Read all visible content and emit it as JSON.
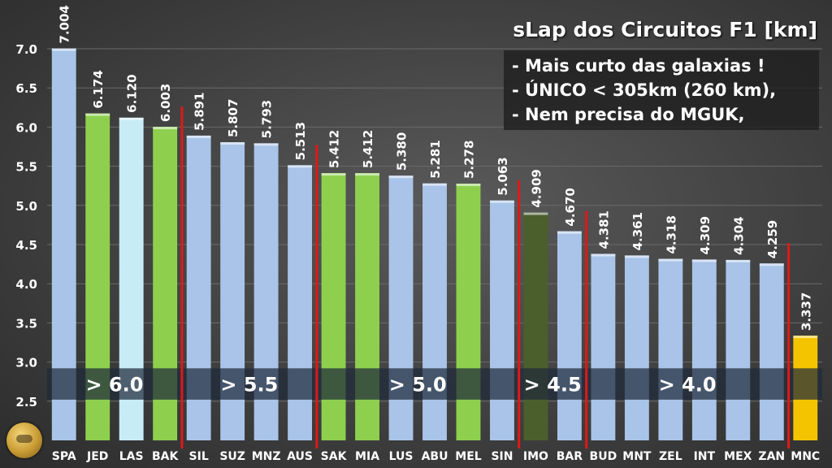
{
  "title": "sLap dos Circuitos F1 [km]",
  "notes": [
    "- Mais curto das galaxias !",
    "- ÚNICO < 305km (260 km),",
    "- Nem precisa do MGUK,"
  ],
  "band_labels": [
    "> 6.0",
    "> 5.5",
    "> 5.0",
    "> 4.5",
    "> 4.0"
  ],
  "colors": {
    "blue": "#a9c4e8",
    "green": "#8ed04e",
    "lightblue": "#c8ecf6",
    "darkgreen": "#4b5f2c",
    "yellow": "#f5c400",
    "divider": "#e01818"
  },
  "chart_data": {
    "type": "bar",
    "categories": [
      "SPA",
      "JED",
      "LAS",
      "BAK",
      "SIL",
      "SUZ",
      "MNZ",
      "AUS",
      "SAK",
      "MIA",
      "LUS",
      "ABU",
      "MEL",
      "SIN",
      "IMO",
      "BAR",
      "BUD",
      "MNT",
      "ZEL",
      "INT",
      "MEX",
      "ZAN",
      "MNC"
    ],
    "values": [
      7.004,
      6.174,
      6.12,
      6.003,
      5.891,
      5.807,
      5.793,
      5.513,
      5.412,
      5.412,
      5.38,
      5.281,
      5.278,
      5.063,
      4.909,
      4.67,
      4.381,
      4.361,
      4.318,
      4.309,
      4.304,
      4.259,
      3.337
    ],
    "value_labels": [
      "7.004",
      "6.174",
      "6.120",
      "6.003",
      "5.891",
      "5.807",
      "5.793",
      "5.513",
      "5.412",
      "5.412",
      "5.380",
      "5.281",
      "5.278",
      "5.063",
      "4.909",
      "4.670",
      "4.381",
      "4.361",
      "4.318",
      "4.309",
      "4.304",
      "4.259",
      "3.337"
    ],
    "bar_colors": [
      "blue",
      "green",
      "lightblue",
      "green",
      "blue",
      "blue",
      "blue",
      "blue",
      "green",
      "green",
      "blue",
      "blue",
      "green",
      "blue",
      "darkgreen",
      "blue",
      "blue",
      "blue",
      "blue",
      "blue",
      "blue",
      "blue",
      "yellow"
    ],
    "yticks": [
      "2.5",
      "3.0",
      "3.5",
      "4.0",
      "4.5",
      "5.0",
      "5.5",
      "6.0",
      "6.5",
      "7.0"
    ],
    "ylim": [
      2.0,
      7.0
    ],
    "title": "sLap dos Circuitos F1 [km]",
    "xlabel": "",
    "ylabel": "",
    "grid": true,
    "group_dividers_after": [
      "BAK",
      "AUS",
      "SIN",
      "BAR",
      "ZAN"
    ]
  }
}
